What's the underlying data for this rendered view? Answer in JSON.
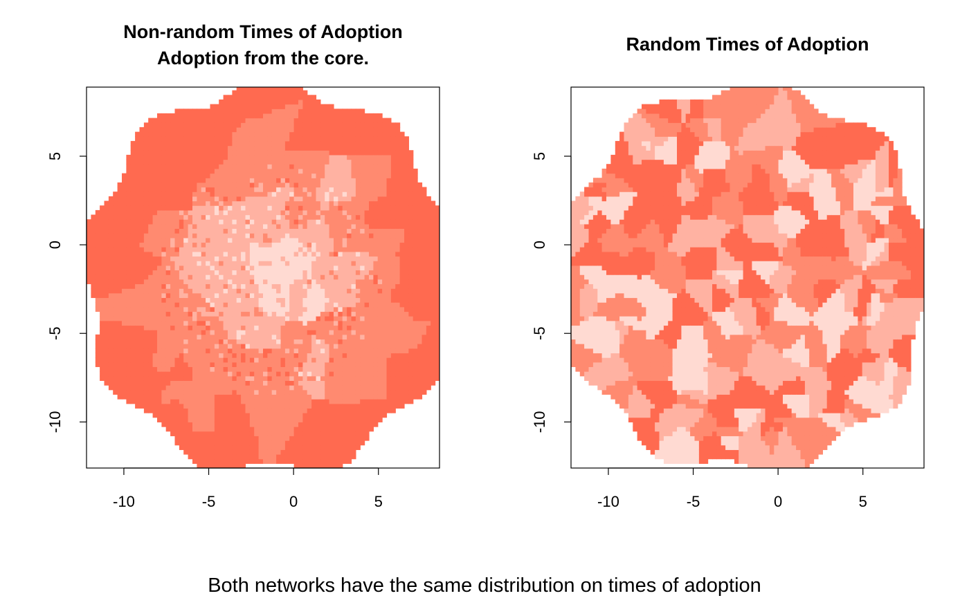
{
  "caption": "Both networks have the same distribution on times of adoption",
  "colors": {
    "palette": [
      "#FFDAD2",
      "#FFB2A2",
      "#FF8A70",
      "#FF6A50",
      "#FF5A3C"
    ],
    "background": "#ffffff",
    "axis": "#000000"
  },
  "chart_data": [
    {
      "type": "heatmap",
      "title_lines": [
        "Non-random Times of Adoption",
        "Adoption from the core."
      ],
      "xlabel": "",
      "ylabel": "",
      "xlim": [
        -12.2,
        8.6
      ],
      "ylim": [
        -12.6,
        8.9
      ],
      "xticks": [
        -10,
        -5,
        0,
        5
      ],
      "yticks": [
        -10,
        -5,
        0,
        5
      ],
      "xtick_labels": [
        "-10",
        "-5",
        "0",
        "5"
      ],
      "ytick_labels": [
        "-10",
        "-5",
        "0",
        "5"
      ],
      "pattern": "radial",
      "color_levels": [
        "#FFDAD2",
        "#FFB2A2",
        "#FF8A70",
        "#FF6A50"
      ],
      "center": [
        -1.5,
        -2.0
      ],
      "grid": false
    },
    {
      "type": "heatmap",
      "title_lines": [
        "Random Times of Adoption"
      ],
      "xlabel": "",
      "ylabel": "",
      "xlim": [
        -12.2,
        8.6
      ],
      "ylim": [
        -12.6,
        8.9
      ],
      "xticks": [
        -10,
        -5,
        0,
        5
      ],
      "yticks": [
        -10,
        -5,
        0,
        5
      ],
      "xtick_labels": [
        "-10",
        "-5",
        "0",
        "5"
      ],
      "ytick_labels": [
        "-10",
        "-5",
        "0",
        "5"
      ],
      "pattern": "random",
      "color_levels": [
        "#FFDAD2",
        "#FFB2A2",
        "#FF8A70",
        "#FF6A50"
      ],
      "center": [
        -2.0,
        -2.0
      ],
      "grid": false
    }
  ]
}
